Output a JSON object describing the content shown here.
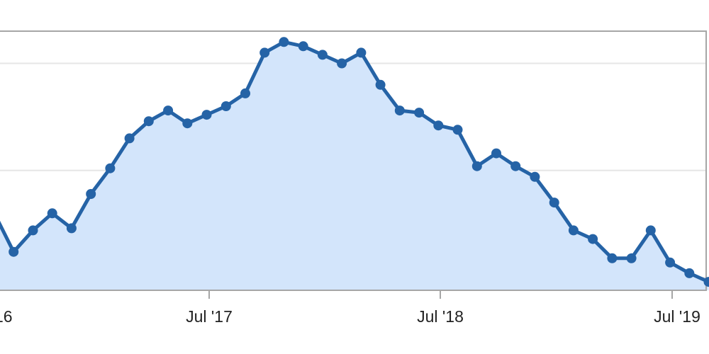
{
  "chart_data": {
    "type": "area",
    "title": "",
    "xlabel": "",
    "ylabel": "",
    "x_tick_labels": [
      "16",
      "Jul '17",
      "Jul '18",
      "Jul '19"
    ],
    "grid": "horizontal",
    "legend": "none",
    "colors": {
      "line": "#2563a6",
      "fill": "#d3e5fb",
      "grid": "#e6e6e6",
      "frame": "#a6a6a6"
    },
    "series": [
      {
        "values": [
          30,
          12,
          22,
          30,
          23,
          39,
          51,
          65,
          73,
          78,
          72,
          76,
          80,
          86,
          105,
          110,
          108,
          104,
          100,
          105,
          90,
          78,
          77,
          71,
          69,
          52,
          58,
          52,
          47,
          35,
          22,
          18,
          9,
          9,
          22,
          7,
          2,
          -2
        ]
      }
    ]
  }
}
